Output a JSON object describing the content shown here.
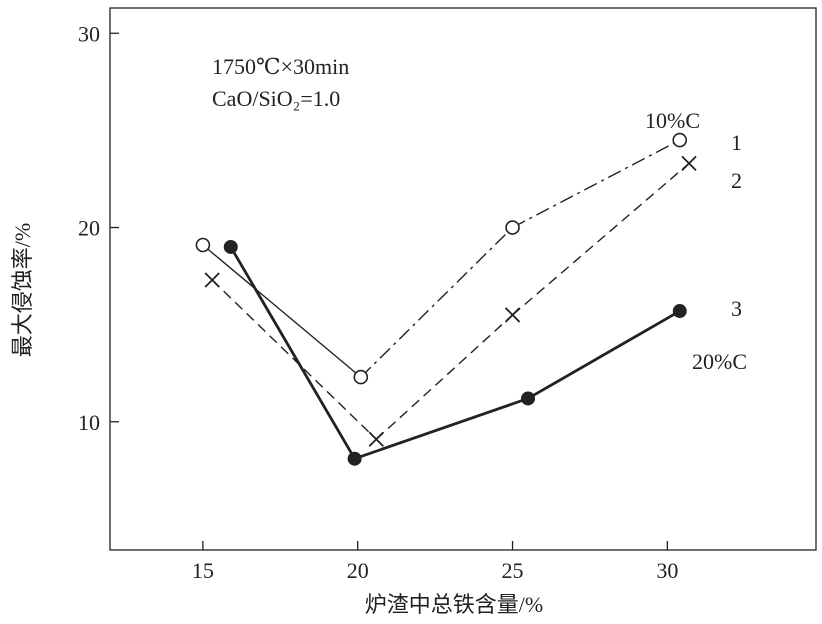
{
  "chart_data": {
    "type": "line",
    "title": "",
    "xlabel": "炉渣中总铁含量/%",
    "ylabel": "最大侵蚀率/%",
    "xlim": [
      12,
      34.8
    ],
    "ylim": [
      3.4,
      31.3
    ],
    "xticks": [
      "15",
      "20",
      "25",
      "30"
    ],
    "yticks": [
      "10",
      "20",
      "30"
    ],
    "grid": false,
    "conditions": [
      "1750℃×30min",
      "CaO/SiO₂=1.0"
    ],
    "series": [
      {
        "name": "1",
        "composition": "10%C",
        "style": "thin-solid-then-dashdot",
        "marker": "open-circle",
        "color": "#222222",
        "x": [
          15.0,
          20.1,
          25.0,
          30.4
        ],
        "y": [
          19.1,
          12.3,
          20.0,
          24.5
        ]
      },
      {
        "name": "2",
        "style": "dashed",
        "marker": "cross",
        "color": "#222222",
        "x": [
          15.3,
          20.6,
          25.0,
          30.7
        ],
        "y": [
          17.3,
          9.1,
          15.5,
          23.3
        ]
      },
      {
        "name": "3",
        "composition": "20%C",
        "style": "thick-solid",
        "marker": "filled-circle",
        "color": "#222222",
        "x": [
          15.9,
          19.9,
          25.5,
          30.4
        ],
        "y": [
          19.0,
          8.1,
          11.2,
          15.7
        ]
      }
    ]
  }
}
